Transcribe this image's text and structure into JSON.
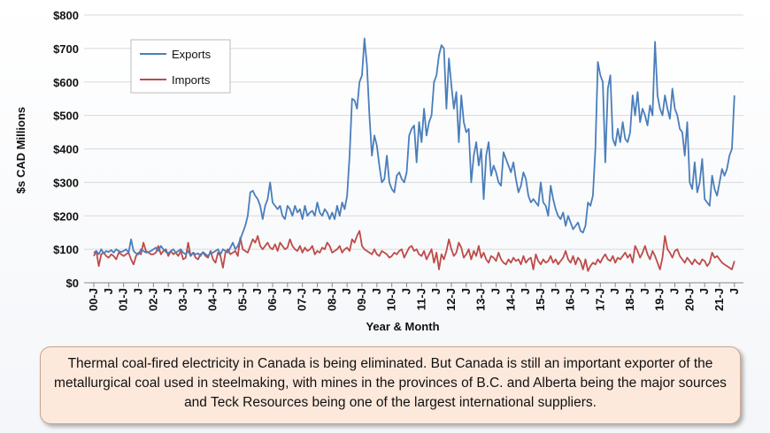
{
  "chart_data": {
    "type": "line",
    "x_label": "Year & Month",
    "y_label": "$s CAD Millions",
    "caption": "Thermal coal-fired electricity in Canada is being eliminated. But Canada is still an important exporter of the metallurgical coal used in steelmaking, with mines in the provinces of B.C. and Alberta being the major sources and Teck Resources being one of the largest international suppliers.",
    "legend": "upper left",
    "grid": true,
    "ylim": [
      0,
      800
    ],
    "yticks": [
      {
        "value": 0,
        "label": "$0"
      },
      {
        "value": 100,
        "label": "$100"
      },
      {
        "value": 200,
        "label": "$200"
      },
      {
        "value": 300,
        "label": "$300"
      },
      {
        "value": 400,
        "label": "$400"
      },
      {
        "value": 500,
        "label": "$500"
      },
      {
        "value": 600,
        "label": "$600"
      },
      {
        "value": 700,
        "label": "$700"
      },
      {
        "value": 800,
        "label": "$800"
      }
    ],
    "categories": [
      "00-J",
      null,
      null,
      null,
      null,
      null,
      "J",
      null,
      null,
      null,
      null,
      null,
      "01-J",
      null,
      null,
      null,
      null,
      null,
      "J",
      null,
      null,
      null,
      null,
      null,
      "02-J",
      null,
      null,
      null,
      null,
      null,
      "J",
      null,
      null,
      null,
      null,
      null,
      "03-J",
      null,
      null,
      null,
      null,
      null,
      "J",
      null,
      null,
      null,
      null,
      null,
      "04-J",
      null,
      null,
      null,
      null,
      null,
      "J",
      null,
      null,
      null,
      null,
      null,
      "05-J",
      null,
      null,
      null,
      null,
      null,
      "J",
      null,
      null,
      null,
      null,
      null,
      "06-J",
      null,
      null,
      null,
      null,
      null,
      "J",
      null,
      null,
      null,
      null,
      null,
      "07-J",
      null,
      null,
      null,
      null,
      null,
      "J",
      null,
      null,
      null,
      null,
      null,
      "08-J",
      null,
      null,
      null,
      null,
      null,
      "J",
      null,
      null,
      null,
      null,
      null,
      "09-J",
      null,
      null,
      null,
      null,
      null,
      "J",
      null,
      null,
      null,
      null,
      null,
      "10-J",
      null,
      null,
      null,
      null,
      null,
      "J",
      null,
      null,
      null,
      null,
      null,
      "11-J",
      null,
      null,
      null,
      null,
      null,
      "J",
      null,
      null,
      null,
      null,
      null,
      "12-J",
      null,
      null,
      null,
      null,
      null,
      "J",
      null,
      null,
      null,
      null,
      null,
      "13-J",
      null,
      null,
      null,
      null,
      null,
      "J",
      null,
      null,
      null,
      null,
      null,
      "14-J",
      null,
      null,
      null,
      null,
      null,
      "J",
      null,
      null,
      null,
      null,
      null,
      "15-J",
      null,
      null,
      null,
      null,
      null,
      "J",
      null,
      null,
      null,
      null,
      null,
      "16-J",
      null,
      null,
      null,
      null,
      null,
      "J",
      null,
      null,
      null,
      null,
      null,
      "17-J",
      null,
      null,
      null,
      null,
      null,
      "J",
      null,
      null,
      null,
      null,
      null,
      "18-J",
      null,
      null,
      null,
      null,
      null,
      "J",
      null,
      null,
      null,
      null,
      null,
      "19-J",
      null,
      null,
      null,
      null,
      null,
      "J",
      null,
      null,
      null,
      null,
      null,
      "20-J",
      null,
      null,
      null,
      null,
      null,
      "J",
      null,
      null,
      null,
      null,
      null,
      "21-J",
      null,
      null,
      null,
      null,
      null,
      "J"
    ],
    "series": [
      {
        "name": "Exports",
        "color": "#4a7ebb",
        "values": [
          90,
          95,
          85,
          100,
          88,
          95,
          92,
          98,
          90,
          100,
          95,
          92,
          95,
          100,
          90,
          130,
          95,
          88,
          85,
          100,
          95,
          90,
          92,
          95,
          100,
          105,
          95,
          110,
          100,
          92,
          88,
          95,
          100,
          90,
          95,
          100,
          90,
          85,
          95,
          80,
          90,
          85,
          88,
          80,
          92,
          85,
          80,
          90,
          90,
          95,
          100,
          85,
          100,
          95,
          90,
          105,
          120,
          100,
          110,
          130,
          150,
          170,
          200,
          270,
          275,
          260,
          250,
          230,
          190,
          230,
          250,
          300,
          240,
          230,
          220,
          230,
          200,
          190,
          230,
          220,
          200,
          230,
          210,
          220,
          190,
          230,
          200,
          210,
          215,
          200,
          240,
          210,
          200,
          220,
          210,
          190,
          210,
          190,
          230,
          200,
          240,
          220,
          260,
          380,
          550,
          545,
          520,
          600,
          620,
          730,
          650,
          500,
          380,
          440,
          410,
          350,
          300,
          310,
          380,
          300,
          280,
          270,
          320,
          330,
          310,
          300,
          330,
          440,
          460,
          470,
          360,
          480,
          420,
          520,
          440,
          480,
          500,
          600,
          620,
          680,
          710,
          700,
          520,
          670,
          590,
          520,
          570,
          420,
          560,
          480,
          450,
          460,
          300,
          380,
          420,
          350,
          400,
          250,
          380,
          420,
          320,
          350,
          330,
          300,
          290,
          390,
          370,
          350,
          330,
          360,
          310,
          270,
          290,
          330,
          310,
          260,
          240,
          250,
          240,
          230,
          300,
          240,
          230,
          200,
          290,
          250,
          220,
          200,
          190,
          210,
          170,
          200,
          180,
          160,
          170,
          180,
          155,
          150,
          170,
          240,
          230,
          260,
          400,
          660,
          620,
          600,
          360,
          580,
          620,
          430,
          410,
          460,
          420,
          480,
          430,
          420,
          450,
          560,
          500,
          570,
          480,
          520,
          500,
          470,
          530,
          500,
          720,
          560,
          520,
          500,
          560,
          520,
          490,
          580,
          520,
          500,
          460,
          450,
          380,
          480,
          300,
          280,
          360,
          270,
          300,
          370,
          250,
          240,
          230,
          320,
          280,
          260,
          300,
          340,
          320,
          340,
          380,
          400,
          560
        ]
      },
      {
        "name": "Imports",
        "color": "#be4b48",
        "values": [
          80,
          95,
          50,
          85,
          90,
          80,
          75,
          85,
          80,
          70,
          90,
          85,
          80,
          85,
          90,
          70,
          55,
          80,
          90,
          85,
          120,
          95,
          90,
          85,
          85,
          90,
          110,
          85,
          95,
          100,
          80,
          95,
          85,
          90,
          80,
          95,
          70,
          75,
          120,
          80,
          90,
          75,
          70,
          85,
          90,
          80,
          75,
          95,
          70,
          60,
          90,
          80,
          45,
          90,
          100,
          85,
          90,
          95,
          80,
          135,
          100,
          95,
          90,
          110,
          130,
          120,
          140,
          110,
          100,
          110,
          120,
          105,
          100,
          115,
          95,
          120,
          110,
          100,
          105,
          130,
          110,
          100,
          95,
          110,
          90,
          105,
          95,
          100,
          110,
          85,
          95,
          90,
          105,
          100,
          120,
          110,
          90,
          95,
          100,
          110,
          90,
          100,
          105,
          95,
          130,
          120,
          140,
          155,
          110,
          100,
          95,
          90,
          85,
          100,
          85,
          80,
          95,
          90,
          85,
          75,
          80,
          90,
          85,
          95,
          100,
          75,
          90,
          105,
          110,
          95,
          100,
          85,
          80,
          95,
          70,
          85,
          100,
          60,
          90,
          40,
          85,
          70,
          95,
          130,
          100,
          80,
          90,
          120,
          105,
          75,
          85,
          100,
          70,
          95,
          80,
          110,
          75,
          90,
          70,
          60,
          80,
          75,
          65,
          90,
          70,
          60,
          55,
          70,
          60,
          75,
          65,
          70,
          55,
          80,
          60,
          70,
          75,
          40,
          85,
          65,
          55,
          70,
          60,
          65,
          80,
          60,
          70,
          55,
          65,
          75,
          95,
          70,
          60,
          80,
          55,
          75,
          65,
          40,
          70,
          35,
          50,
          60,
          55,
          70,
          60,
          75,
          85,
          70,
          65,
          80,
          60,
          75,
          70,
          80,
          90,
          75,
          85,
          60,
          110,
          95,
          75,
          90,
          110,
          85,
          70,
          95,
          80,
          60,
          40,
          75,
          140,
          100,
          90,
          75,
          95,
          100,
          80,
          70,
          60,
          75,
          65,
          55,
          70,
          60,
          55,
          70,
          65,
          50,
          60,
          90,
          75,
          80,
          70,
          60,
          55,
          50,
          45,
          40,
          65
        ]
      }
    ]
  }
}
